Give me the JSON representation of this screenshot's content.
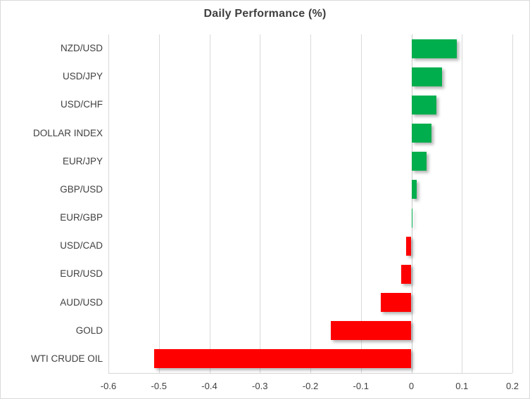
{
  "chart_data": {
    "type": "bar",
    "orientation": "horizontal",
    "title": "Daily Performance (%)",
    "categories": [
      "NZD/USD",
      "USD/JPY",
      "USD/CHF",
      "DOLLAR INDEX",
      "EUR/JPY",
      "GBP/USD",
      "EUR/GBP",
      "USD/CAD",
      "EUR/USD",
      "AUD/USD",
      "GOLD",
      "WTI CRUDE OIL"
    ],
    "values": [
      0.09,
      0.06,
      0.05,
      0.04,
      0.03,
      0.01,
      0.002,
      -0.01,
      -0.02,
      -0.06,
      -0.16,
      -0.51
    ],
    "xlabel": "",
    "ylabel": "",
    "xlim": [
      -0.6,
      0.2
    ],
    "x_tick_values": [
      -0.6,
      -0.5,
      -0.4,
      -0.3,
      -0.2,
      -0.1,
      0,
      0.1,
      0.2
    ],
    "x_tick_labels": [
      "-0.6",
      "-0.5",
      "-0.4",
      "-0.3",
      "-0.2",
      "-0.1",
      "0",
      "0.1",
      "0.2"
    ],
    "grid": true,
    "legend": "none",
    "colors": {
      "positive": "#00ae4d",
      "negative": "#ff0000",
      "gridline": "#d9d9d9",
      "axis_line": "#d6d6d6",
      "text": "#404040",
      "background": "#ffffff",
      "border": "#d9d9d9"
    }
  }
}
